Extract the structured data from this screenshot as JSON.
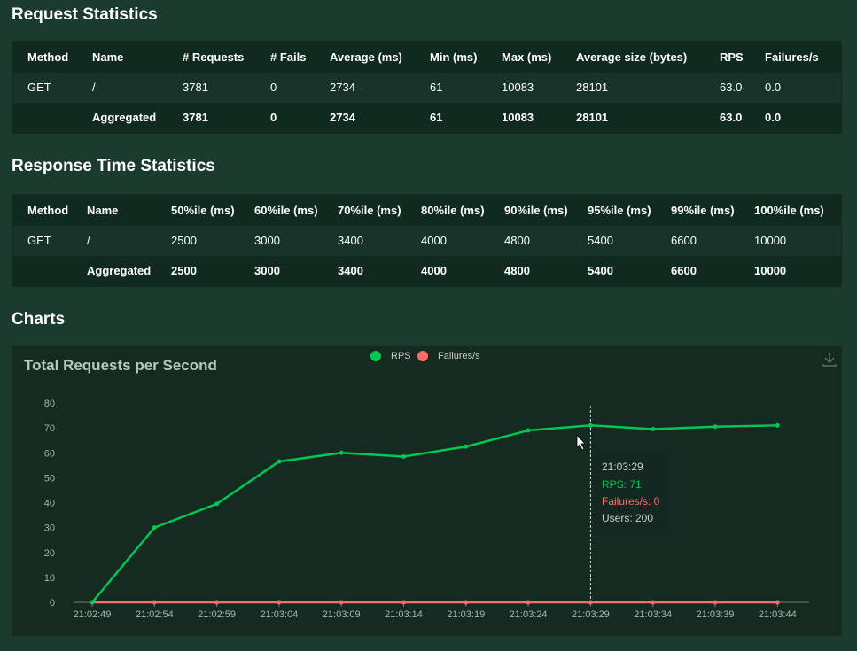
{
  "request_statistics": {
    "title": "Request Statistics",
    "columns": [
      "Method",
      "Name",
      "# Requests",
      "# Fails",
      "Average (ms)",
      "Min (ms)",
      "Max (ms)",
      "Average size (bytes)",
      "RPS",
      "Failures/s"
    ],
    "rows": [
      [
        "GET",
        "/",
        "3781",
        "0",
        "2734",
        "61",
        "10083",
        "28101",
        "63.0",
        "0.0"
      ],
      [
        null,
        "Aggregated",
        "3781",
        "0",
        "2734",
        "61",
        "10083",
        "28101",
        "63.0",
        "0.0"
      ]
    ]
  },
  "response_time_statistics": {
    "title": "Response Time Statistics",
    "columns": [
      "Method",
      "Name",
      "50%ile (ms)",
      "60%ile (ms)",
      "70%ile (ms)",
      "80%ile (ms)",
      "90%ile (ms)",
      "95%ile (ms)",
      "99%ile (ms)",
      "100%ile (ms)"
    ],
    "rows": [
      [
        "GET",
        "/",
        "2500",
        "3000",
        "3400",
        "4000",
        "4800",
        "5400",
        "6600",
        "10000"
      ],
      [
        null,
        "Aggregated",
        "2500",
        "3000",
        "3400",
        "4000",
        "4800",
        "5400",
        "6600",
        "10000"
      ]
    ]
  },
  "charts": {
    "title": "Charts",
    "chart": {
      "type": "line",
      "title": "Total Requests per Second",
      "x": [
        "21:02:49",
        "21:02:54",
        "21:02:59",
        "21:03:04",
        "21:03:09",
        "21:03:14",
        "21:03:19",
        "21:03:24",
        "21:03:29",
        "21:03:34",
        "21:03:39",
        "21:03:44"
      ],
      "series": [
        {
          "name": "RPS",
          "color": "#00c853",
          "values": [
            0,
            30,
            39.5,
            56.5,
            60,
            58.5,
            62.5,
            69,
            71,
            69.5,
            70.5,
            71
          ]
        },
        {
          "name": "Failures/s",
          "color": "#ff6b6b",
          "values": [
            0,
            0,
            0,
            0,
            0,
            0,
            0,
            0,
            0,
            0,
            0,
            0
          ]
        }
      ],
      "ylim": [
        0,
        80
      ],
      "yticks": [
        0,
        10,
        20,
        30,
        40,
        50,
        60,
        70,
        80
      ]
    },
    "tooltip": {
      "time": "21:03:29",
      "lines": [
        "RPS: 71",
        "Failures/s: 0",
        "Users: 200"
      ]
    }
  }
}
